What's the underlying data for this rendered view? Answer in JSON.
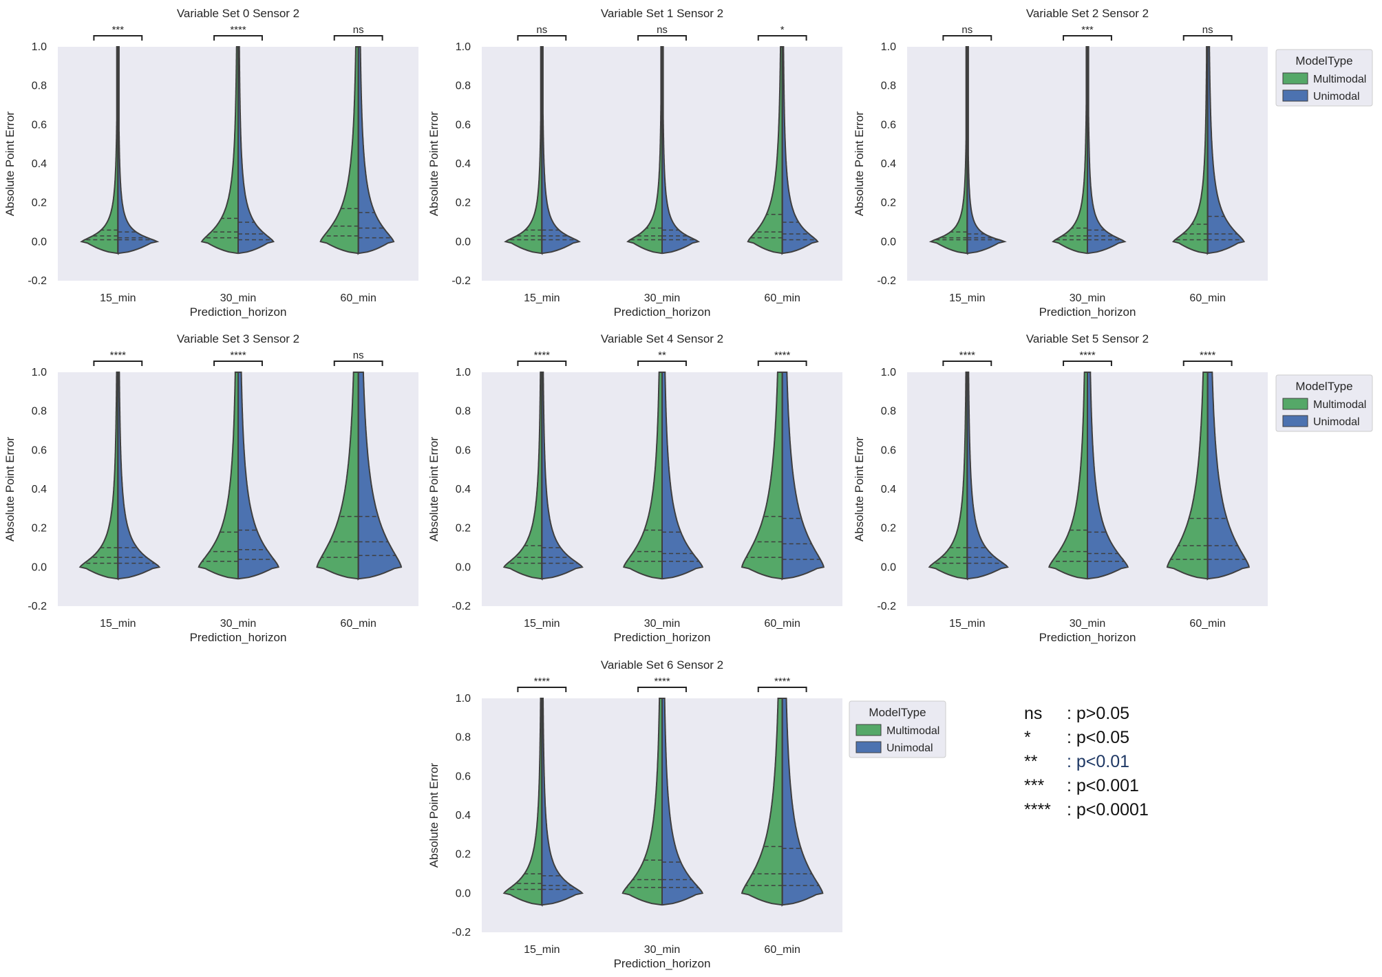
{
  "chart_data": [
    {
      "type": "violin",
      "title": "Variable Set 0 Sensor 2",
      "xlabel": "Prediction_horizon",
      "ylabel": "Absolute Point Error",
      "categories": [
        "15_min",
        "30_min",
        "60_min"
      ],
      "ylim": [
        -0.2,
        1.0
      ],
      "yticks": [
        "-0.2",
        "0.0",
        "0.2",
        "0.4",
        "0.6",
        "0.8",
        "1.0"
      ],
      "significance": [
        "***",
        "****",
        "ns"
      ],
      "series": [
        {
          "name": "Multimodal",
          "color": "#55a868",
          "quartiles": [
            [
              0.01,
              0.03,
              0.06
            ],
            [
              0.02,
              0.05,
              0.12
            ],
            [
              0.03,
              0.08,
              0.17
            ]
          ],
          "width": [
            0.72,
            0.72,
            0.75
          ]
        },
        {
          "name": "Unimodal",
          "color": "#4c72b0",
          "quartiles": [
            [
              0.01,
              0.02,
              0.05
            ],
            [
              0.01,
              0.04,
              0.1
            ],
            [
              0.02,
              0.07,
              0.15
            ]
          ],
          "width": [
            0.78,
            0.7,
            0.7
          ]
        }
      ]
    },
    {
      "type": "violin",
      "title": "Variable Set 1 Sensor 2",
      "xlabel": "Prediction_horizon",
      "ylabel": "Absolute Point Error",
      "categories": [
        "15_min",
        "30_min",
        "60_min"
      ],
      "ylim": [
        -0.2,
        1.0
      ],
      "yticks": [
        "-0.2",
        "0.0",
        "0.2",
        "0.4",
        "0.6",
        "0.8",
        "1.0"
      ],
      "significance": [
        "ns",
        "ns",
        "*"
      ],
      "series": [
        {
          "name": "Multimodal",
          "color": "#55a868",
          "quartiles": [
            [
              0.01,
              0.03,
              0.06
            ],
            [
              0.01,
              0.03,
              0.07
            ],
            [
              0.02,
              0.05,
              0.14
            ]
          ],
          "width": [
            0.72,
            0.68,
            0.68
          ]
        },
        {
          "name": "Unimodal",
          "color": "#4c72b0",
          "quartiles": [
            [
              0.01,
              0.03,
              0.06
            ],
            [
              0.01,
              0.03,
              0.06
            ],
            [
              0.01,
              0.04,
              0.1
            ]
          ],
          "width": [
            0.74,
            0.72,
            0.7
          ]
        }
      ]
    },
    {
      "type": "violin",
      "title": "Variable Set 2 Sensor 2",
      "xlabel": "Prediction_horizon",
      "ylabel": "Absolute Point Error",
      "categories": [
        "15_min",
        "30_min",
        "60_min"
      ],
      "ylim": [
        -0.2,
        1.0
      ],
      "yticks": [
        "-0.2",
        "0.0",
        "0.2",
        "0.4",
        "0.6",
        "0.8",
        "1.0"
      ],
      "significance": [
        "ns",
        "***",
        "ns"
      ],
      "series": [
        {
          "name": "Multimodal",
          "color": "#55a868",
          "quartiles": [
            [
              0.01,
              0.02,
              0.05
            ],
            [
              0.01,
              0.03,
              0.07
            ],
            [
              0.01,
              0.04,
              0.09
            ]
          ],
          "width": [
            0.72,
            0.68,
            0.68
          ]
        },
        {
          "name": "Unimodal",
          "color": "#4c72b0",
          "quartiles": [
            [
              0.01,
              0.02,
              0.04
            ],
            [
              0.01,
              0.03,
              0.06
            ],
            [
              0.01,
              0.04,
              0.13
            ]
          ],
          "width": [
            0.74,
            0.74,
            0.72
          ]
        }
      ]
    },
    {
      "type": "violin",
      "title": "Variable Set 3 Sensor 2",
      "xlabel": "Prediction_horizon",
      "ylabel": "Absolute Point Error",
      "categories": [
        "15_min",
        "30_min",
        "60_min"
      ],
      "ylim": [
        -0.2,
        1.0
      ],
      "yticks": [
        "-0.2",
        "0.0",
        "0.2",
        "0.4",
        "0.6",
        "0.8",
        "1.0"
      ],
      "significance": [
        "****",
        "****",
        "ns"
      ],
      "series": [
        {
          "name": "Multimodal",
          "color": "#55a868",
          "quartiles": [
            [
              0.02,
              0.05,
              0.1
            ],
            [
              0.03,
              0.08,
              0.18
            ],
            [
              0.05,
              0.13,
              0.26
            ]
          ],
          "width": [
            0.75,
            0.78,
            0.82
          ]
        },
        {
          "name": "Unimodal",
          "color": "#4c72b0",
          "quartiles": [
            [
              0.02,
              0.05,
              0.1
            ],
            [
              0.04,
              0.09,
              0.19
            ],
            [
              0.06,
              0.13,
              0.26
            ]
          ],
          "width": [
            0.82,
            0.8,
            0.85
          ]
        }
      ]
    },
    {
      "type": "violin",
      "title": "Variable Set 4 Sensor 2",
      "xlabel": "Prediction_horizon",
      "ylabel": "Absolute Point Error",
      "categories": [
        "15_min",
        "30_min",
        "60_min"
      ],
      "ylim": [
        -0.2,
        1.0
      ],
      "yticks": [
        "-0.2",
        "0.0",
        "0.2",
        "0.4",
        "0.6",
        "0.8",
        "1.0"
      ],
      "significance": [
        "****",
        "**",
        "****"
      ],
      "series": [
        {
          "name": "Multimodal",
          "color": "#55a868",
          "quartiles": [
            [
              0.02,
              0.05,
              0.11
            ],
            [
              0.03,
              0.08,
              0.19
            ],
            [
              0.05,
              0.13,
              0.26
            ]
          ],
          "width": [
            0.75,
            0.76,
            0.8
          ]
        },
        {
          "name": "Unimodal",
          "color": "#4c72b0",
          "quartiles": [
            [
              0.02,
              0.05,
              0.1
            ],
            [
              0.03,
              0.07,
              0.18
            ],
            [
              0.04,
              0.12,
              0.25
            ]
          ],
          "width": [
            0.8,
            0.8,
            0.82
          ]
        }
      ]
    },
    {
      "type": "violin",
      "title": "Variable Set 5 Sensor 2",
      "xlabel": "Prediction_horizon",
      "ylabel": "Absolute Point Error",
      "categories": [
        "15_min",
        "30_min",
        "60_min"
      ],
      "ylim": [
        -0.2,
        1.0
      ],
      "yticks": [
        "-0.2",
        "0.0",
        "0.2",
        "0.4",
        "0.6",
        "0.8",
        "1.0"
      ],
      "significance": [
        "****",
        "****",
        "****"
      ],
      "series": [
        {
          "name": "Multimodal",
          "color": "#55a868",
          "quartiles": [
            [
              0.02,
              0.05,
              0.1
            ],
            [
              0.03,
              0.08,
              0.19
            ],
            [
              0.04,
              0.11,
              0.25
            ]
          ],
          "width": [
            0.75,
            0.76,
            0.8
          ]
        },
        {
          "name": "Unimodal",
          "color": "#4c72b0",
          "quartiles": [
            [
              0.02,
              0.05,
              0.1
            ],
            [
              0.03,
              0.07,
              0.18
            ],
            [
              0.04,
              0.11,
              0.25
            ]
          ],
          "width": [
            0.8,
            0.8,
            0.82
          ]
        }
      ]
    },
    {
      "type": "violin",
      "title": "Variable Set 6 Sensor 2",
      "xlabel": "Prediction_horizon",
      "ylabel": "Absolute Point Error",
      "categories": [
        "15_min",
        "30_min",
        "60_min"
      ],
      "ylim": [
        -0.2,
        1.0
      ],
      "yticks": [
        "-0.2",
        "0.0",
        "0.2",
        "0.4",
        "0.6",
        "0.8",
        "1.0"
      ],
      "significance": [
        "****",
        "****",
        "****"
      ],
      "series": [
        {
          "name": "Multimodal",
          "color": "#55a868",
          "quartiles": [
            [
              0.02,
              0.05,
              0.1
            ],
            [
              0.03,
              0.07,
              0.17
            ],
            [
              0.04,
              0.1,
              0.24
            ]
          ],
          "width": [
            0.75,
            0.78,
            0.8
          ]
        },
        {
          "name": "Unimodal",
          "color": "#4c72b0",
          "quartiles": [
            [
              0.02,
              0.04,
              0.09
            ],
            [
              0.03,
              0.07,
              0.16
            ],
            [
              0.04,
              0.1,
              0.23
            ]
          ],
          "width": [
            0.8,
            0.8,
            0.8
          ]
        }
      ]
    }
  ],
  "legend": {
    "title": "ModelType",
    "items": [
      {
        "label": "Multimodal",
        "color": "#55a868"
      },
      {
        "label": "Unimodal",
        "color": "#4c72b0"
      }
    ]
  },
  "p_value_key": [
    {
      "symbol": "ns",
      "meaning": ": p>0.05"
    },
    {
      "symbol": "*",
      "meaning": ": p<0.05"
    },
    {
      "symbol": "**",
      "meaning": ": p<0.01"
    },
    {
      "symbol": "***",
      "meaning": ": p<0.001"
    },
    {
      "symbol": "****",
      "meaning": ": p<0.0001"
    }
  ]
}
